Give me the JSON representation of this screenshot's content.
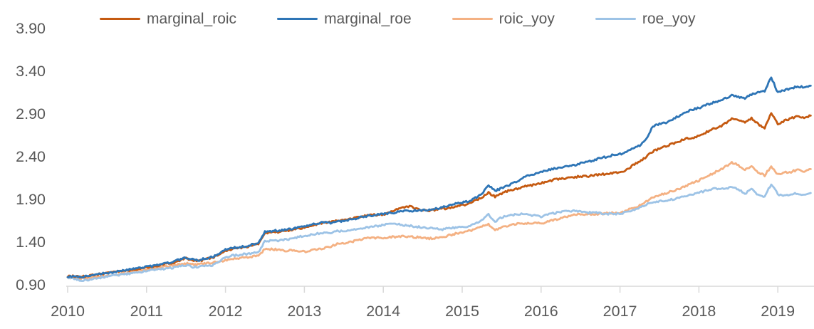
{
  "colors": {
    "text": "#595959",
    "axis_line": "#D9D9D9",
    "background": "#FFFFFF"
  },
  "chart_data": {
    "type": "line",
    "title": "",
    "xlabel": "",
    "ylabel": "",
    "grid": false,
    "legend_position": "top",
    "x_start_year": 2010,
    "x_months_per_point": 1,
    "x_ticks": [
      2010,
      2011,
      2012,
      2013,
      2014,
      2015,
      2016,
      2017,
      2018,
      2019
    ],
    "x_tick_labels": [
      "2010",
      "2011",
      "2012",
      "2013",
      "2014",
      "2015",
      "2016",
      "2017",
      "2018",
      "2019"
    ],
    "y_ticks": [
      0.9,
      1.4,
      1.9,
      2.4,
      2.9,
      3.4,
      3.9
    ],
    "y_tick_labels": [
      "0.90",
      "1.40",
      "1.90",
      "2.40",
      "2.90",
      "3.40",
      "3.90"
    ],
    "ylim": [
      0.9,
      3.9
    ],
    "series": [
      {
        "name": "marginal_roic",
        "color": "#C55A11",
        "values": [
          1.0,
          1.0,
          0.995,
          1.0,
          1.015,
          1.03,
          1.04,
          1.05,
          1.058,
          1.068,
          1.08,
          1.09,
          1.1,
          1.112,
          1.13,
          1.145,
          1.16,
          1.185,
          1.21,
          1.19,
          1.18,
          1.2,
          1.215,
          1.25,
          1.3,
          1.32,
          1.33,
          1.34,
          1.36,
          1.38,
          1.51,
          1.515,
          1.52,
          1.53,
          1.54,
          1.555,
          1.57,
          1.59,
          1.61,
          1.63,
          1.635,
          1.65,
          1.66,
          1.67,
          1.69,
          1.705,
          1.715,
          1.72,
          1.725,
          1.75,
          1.78,
          1.8,
          1.82,
          1.79,
          1.78,
          1.77,
          1.78,
          1.79,
          1.8,
          1.82,
          1.83,
          1.85,
          1.89,
          1.92,
          1.98,
          1.93,
          1.97,
          2.0,
          2.02,
          2.04,
          2.06,
          2.07,
          2.09,
          2.11,
          2.13,
          2.14,
          2.15,
          2.16,
          2.17,
          2.17,
          2.18,
          2.19,
          2.2,
          2.21,
          2.21,
          2.25,
          2.3,
          2.34,
          2.4,
          2.46,
          2.5,
          2.52,
          2.55,
          2.58,
          2.61,
          2.62,
          2.64,
          2.68,
          2.72,
          2.74,
          2.79,
          2.84,
          2.83,
          2.8,
          2.85,
          2.78,
          2.73,
          2.92,
          2.78,
          2.82,
          2.85,
          2.87,
          2.86,
          2.88
        ]
      },
      {
        "name": "marginal_roe",
        "color": "#2E75B6",
        "values": [
          1.0,
          1.0,
          0.99,
          1.0,
          1.015,
          1.03,
          1.04,
          1.05,
          1.06,
          1.07,
          1.09,
          1.1,
          1.11,
          1.12,
          1.14,
          1.155,
          1.17,
          1.195,
          1.22,
          1.2,
          1.19,
          1.21,
          1.225,
          1.26,
          1.31,
          1.33,
          1.34,
          1.35,
          1.37,
          1.39,
          1.52,
          1.53,
          1.535,
          1.545,
          1.555,
          1.57,
          1.58,
          1.6,
          1.62,
          1.63,
          1.625,
          1.64,
          1.65,
          1.66,
          1.68,
          1.7,
          1.71,
          1.72,
          1.73,
          1.74,
          1.75,
          1.76,
          1.765,
          1.77,
          1.775,
          1.78,
          1.79,
          1.81,
          1.83,
          1.85,
          1.86,
          1.88,
          1.92,
          1.96,
          2.07,
          2.0,
          2.03,
          2.06,
          2.1,
          2.14,
          2.18,
          2.2,
          2.22,
          2.24,
          2.26,
          2.27,
          2.29,
          2.3,
          2.32,
          2.34,
          2.36,
          2.38,
          2.4,
          2.42,
          2.43,
          2.46,
          2.5,
          2.53,
          2.6,
          2.76,
          2.78,
          2.8,
          2.84,
          2.88,
          2.92,
          2.95,
          2.97,
          3.0,
          3.03,
          3.05,
          3.08,
          3.12,
          3.1,
          3.08,
          3.13,
          3.15,
          3.17,
          3.33,
          3.15,
          3.18,
          3.2,
          3.22,
          3.215,
          3.23
        ]
      },
      {
        "name": "roic_yoy",
        "color": "#F4B183",
        "values": [
          0.99,
          0.98,
          0.97,
          0.98,
          0.99,
          1.0,
          1.01,
          1.02,
          1.03,
          1.042,
          1.058,
          1.07,
          1.08,
          1.09,
          1.108,
          1.118,
          1.13,
          1.14,
          1.15,
          1.14,
          1.14,
          1.15,
          1.16,
          1.17,
          1.19,
          1.2,
          1.21,
          1.22,
          1.23,
          1.24,
          1.32,
          1.318,
          1.31,
          1.3,
          1.308,
          1.3,
          1.285,
          1.3,
          1.32,
          1.33,
          1.35,
          1.38,
          1.39,
          1.4,
          1.42,
          1.44,
          1.45,
          1.45,
          1.45,
          1.458,
          1.462,
          1.47,
          1.462,
          1.458,
          1.45,
          1.442,
          1.45,
          1.46,
          1.48,
          1.5,
          1.51,
          1.53,
          1.55,
          1.58,
          1.61,
          1.54,
          1.57,
          1.59,
          1.61,
          1.62,
          1.62,
          1.63,
          1.62,
          1.64,
          1.66,
          1.68,
          1.7,
          1.72,
          1.73,
          1.72,
          1.73,
          1.73,
          1.74,
          1.74,
          1.74,
          1.77,
          1.8,
          1.83,
          1.88,
          1.92,
          1.95,
          1.97,
          2.0,
          2.02,
          2.06,
          2.09,
          2.12,
          2.16,
          2.2,
          2.24,
          2.28,
          2.33,
          2.3,
          2.24,
          2.3,
          2.22,
          2.18,
          2.29,
          2.19,
          2.22,
          2.22,
          2.25,
          2.23,
          2.255
        ]
      },
      {
        "name": "roe_yoy",
        "color": "#9DC3E6",
        "values": [
          0.99,
          0.97,
          0.95,
          0.96,
          0.97,
          0.985,
          1.0,
          1.01,
          1.02,
          1.03,
          1.04,
          1.05,
          1.06,
          1.07,
          1.08,
          1.09,
          1.1,
          1.118,
          1.13,
          1.11,
          1.11,
          1.12,
          1.13,
          1.17,
          1.22,
          1.24,
          1.25,
          1.26,
          1.27,
          1.28,
          1.41,
          1.42,
          1.42,
          1.43,
          1.44,
          1.46,
          1.47,
          1.49,
          1.5,
          1.51,
          1.51,
          1.53,
          1.53,
          1.54,
          1.55,
          1.56,
          1.58,
          1.59,
          1.6,
          1.61,
          1.61,
          1.6,
          1.59,
          1.58,
          1.57,
          1.56,
          1.56,
          1.55,
          1.56,
          1.57,
          1.57,
          1.59,
          1.62,
          1.66,
          1.72,
          1.64,
          1.69,
          1.71,
          1.72,
          1.73,
          1.72,
          1.71,
          1.7,
          1.72,
          1.74,
          1.75,
          1.76,
          1.77,
          1.76,
          1.74,
          1.75,
          1.74,
          1.73,
          1.73,
          1.73,
          1.75,
          1.77,
          1.8,
          1.84,
          1.87,
          1.88,
          1.89,
          1.9,
          1.92,
          1.94,
          1.96,
          1.98,
          2.0,
          2.02,
          2.03,
          2.02,
          2.05,
          2.02,
          1.96,
          2.03,
          1.95,
          1.93,
          2.08,
          1.96,
          1.95,
          1.96,
          1.97,
          1.955,
          1.975
        ]
      }
    ]
  }
}
